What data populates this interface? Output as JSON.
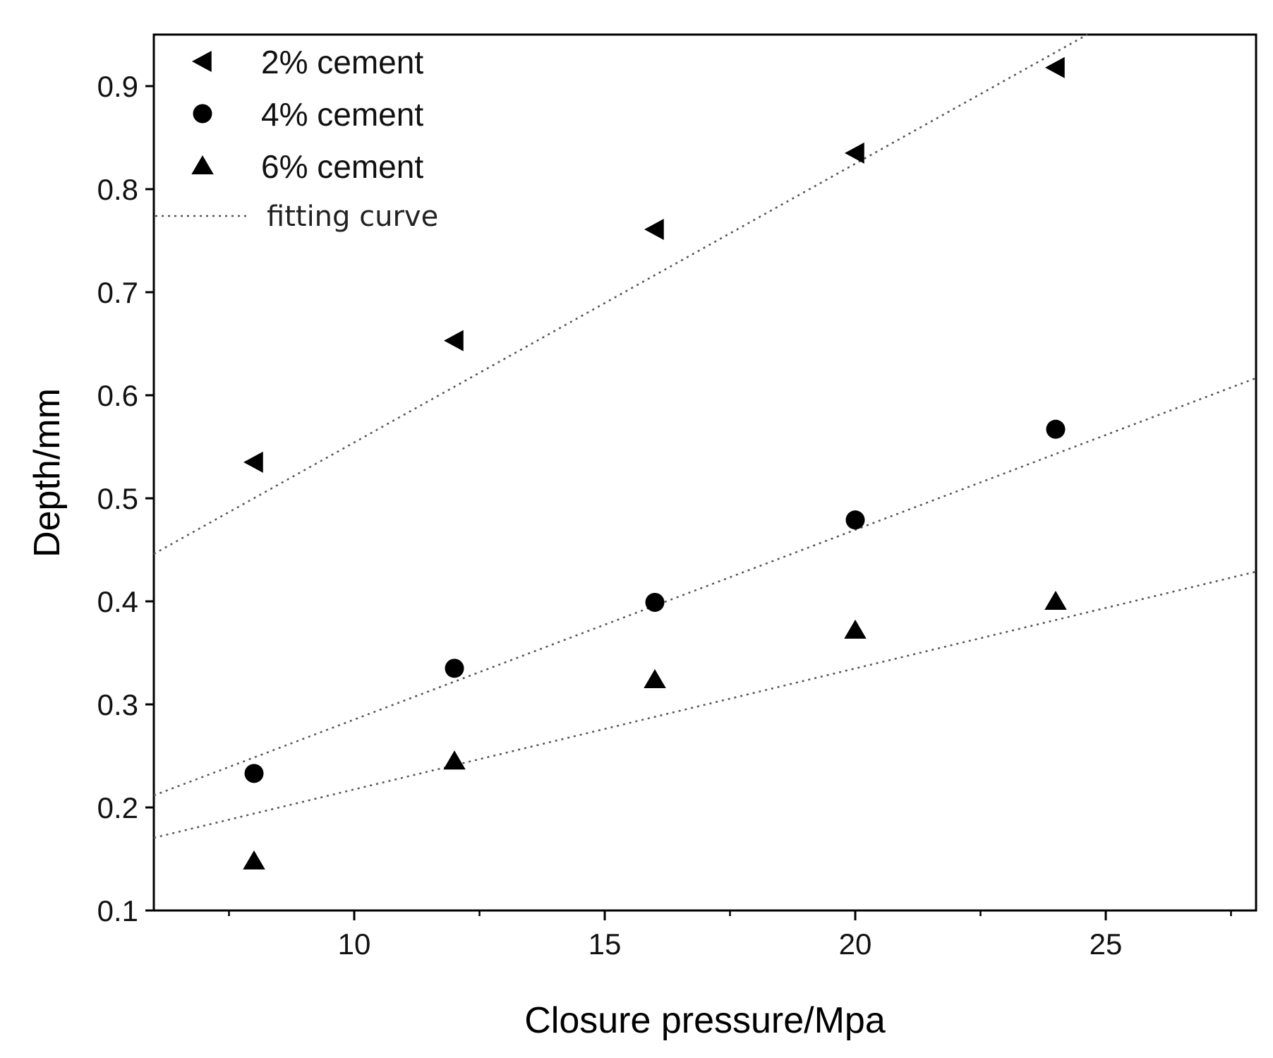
{
  "chart_data": {
    "type": "scatter",
    "title": "",
    "xlabel": "Closure pressure/Mpa",
    "ylabel": "Depth/mm",
    "xlim": [
      6,
      28
    ],
    "ylim": [
      0.1,
      0.95
    ],
    "x_ticks": [
      10,
      15,
      20,
      25
    ],
    "x_minor_ticks": [
      7.5,
      12.5,
      17.5,
      22.5,
      27.5
    ],
    "y_ticks": [
      0.1,
      0.2,
      0.3,
      0.4,
      0.5,
      0.6,
      0.7,
      0.8,
      0.9
    ],
    "x_tick_labels": [
      "10",
      "15",
      "20",
      "25"
    ],
    "y_tick_labels": [
      "0.1",
      "0.2",
      "0.3",
      "0.4",
      "0.5",
      "0.6",
      "0.7",
      "0.8",
      "0.9"
    ],
    "grid": false,
    "legend_position": "top-left",
    "series": [
      {
        "name": "2% cement",
        "marker": "triangle-left",
        "x": [
          8,
          12,
          16,
          20,
          24
        ],
        "y": [
          0.535,
          0.653,
          0.761,
          0.835,
          0.918
        ]
      },
      {
        "name": "4% cement",
        "marker": "circle",
        "x": [
          8,
          12,
          16,
          20,
          24
        ],
        "y": [
          0.233,
          0.335,
          0.399,
          0.479,
          0.567
        ]
      },
      {
        "name": "6% cement",
        "marker": "triangle-up",
        "x": [
          8,
          12,
          16,
          20,
          24
        ],
        "y": [
          0.148,
          0.245,
          0.324,
          0.372,
          0.4
        ]
      }
    ],
    "fits": [
      {
        "series": "2% cement",
        "slope": 0.02705,
        "intercept": 0.2837
      },
      {
        "series": "4% cement",
        "slope": 0.01841,
        "intercept": 0.1012
      },
      {
        "series": "6% cement",
        "slope": 0.01174,
        "intercept": 0.1001
      }
    ],
    "fit_legend_label": "fitting curve"
  }
}
